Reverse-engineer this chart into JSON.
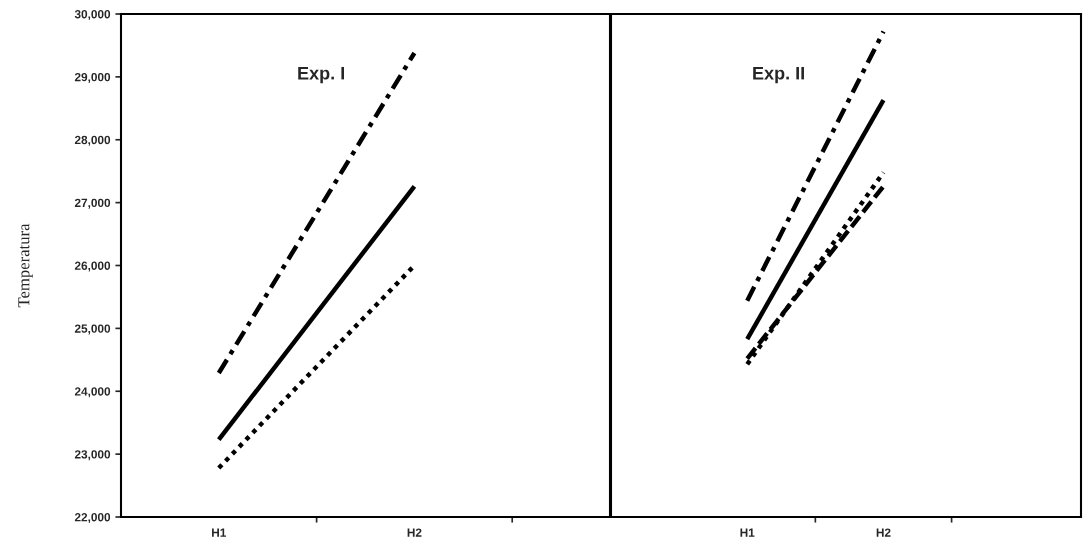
{
  "chart_data": [
    {
      "type": "line",
      "ylabel": "Temperatura",
      "categories": [
        "H1",
        "H2"
      ],
      "annotations": [
        "Exp. I"
      ],
      "series": [
        {
          "color": "#000000",
          "line_style": "dashdot",
          "values": [
            24290,
            29380
          ]
        },
        {
          "color": "#000000",
          "line_style": "solid",
          "values": [
            23230,
            27260
          ]
        },
        {
          "color": "#000000",
          "line_style": "dotted",
          "values": [
            22780,
            26000
          ]
        }
      ],
      "ylim": [
        22000,
        30000
      ],
      "yticks": [
        {
          "value": 22000,
          "label": "22,000"
        },
        {
          "value": 23000,
          "label": "23,000"
        },
        {
          "value": 24000,
          "label": "24,000"
        },
        {
          "value": 25000,
          "label": "25,000"
        },
        {
          "value": 26000,
          "label": "26,000"
        },
        {
          "value": 27000,
          "label": "27,000"
        },
        {
          "value": 28000,
          "label": "28,000"
        },
        {
          "value": 29000,
          "label": "29,000"
        },
        {
          "value": 30000,
          "label": "30,000"
        }
      ],
      "grid": false,
      "legend": false
    },
    {
      "type": "line",
      "categories": [
        "H1",
        "H2"
      ],
      "annotations": [
        "Exp. II"
      ],
      "series": [
        {
          "color": "#000000",
          "line_style": "dashdot",
          "values": [
            25440,
            29720
          ]
        },
        {
          "color": "#000000",
          "line_style": "solid",
          "values": [
            24830,
            28630
          ]
        },
        {
          "color": "#000000",
          "line_style": "dotted",
          "values": [
            24430,
            27480
          ]
        },
        {
          "color": "#000000",
          "line_style": "dashed",
          "values": [
            24520,
            27260
          ]
        }
      ],
      "ylim": [
        22000,
        30000
      ],
      "tick_labels": "x",
      "grid": false,
      "legend": false
    }
  ]
}
